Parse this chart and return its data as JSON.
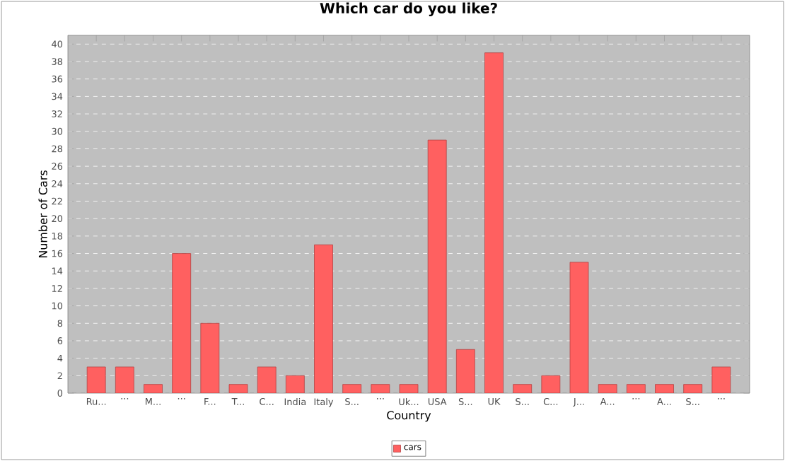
{
  "chart_data": {
    "type": "bar",
    "title": "Which car do you like?",
    "xlabel": "Country",
    "ylabel": "Number of Cars",
    "categories": [
      "Ru...",
      "...",
      "M...",
      "...",
      "F...",
      "T...",
      "C...",
      "India",
      "Italy",
      "S...",
      "...",
      "Uk...",
      "USA",
      "S...",
      "UK",
      "S...",
      "C...",
      "J...",
      "A...",
      "...",
      "A...",
      "S...",
      "..."
    ],
    "series": [
      {
        "name": "cars",
        "color": "#ff6060",
        "values": [
          3,
          3,
          1,
          16,
          8,
          1,
          3,
          2,
          17,
          1,
          1,
          1,
          29,
          5,
          39,
          1,
          2,
          15,
          1,
          1,
          1,
          1,
          3
        ]
      }
    ],
    "ylim": [
      0,
      41
    ],
    "yticks": [
      0,
      2,
      4,
      6,
      8,
      10,
      12,
      14,
      16,
      18,
      20,
      22,
      24,
      26,
      28,
      30,
      32,
      34,
      36,
      38,
      40
    ],
    "grid": "y",
    "legend": "bottom"
  }
}
